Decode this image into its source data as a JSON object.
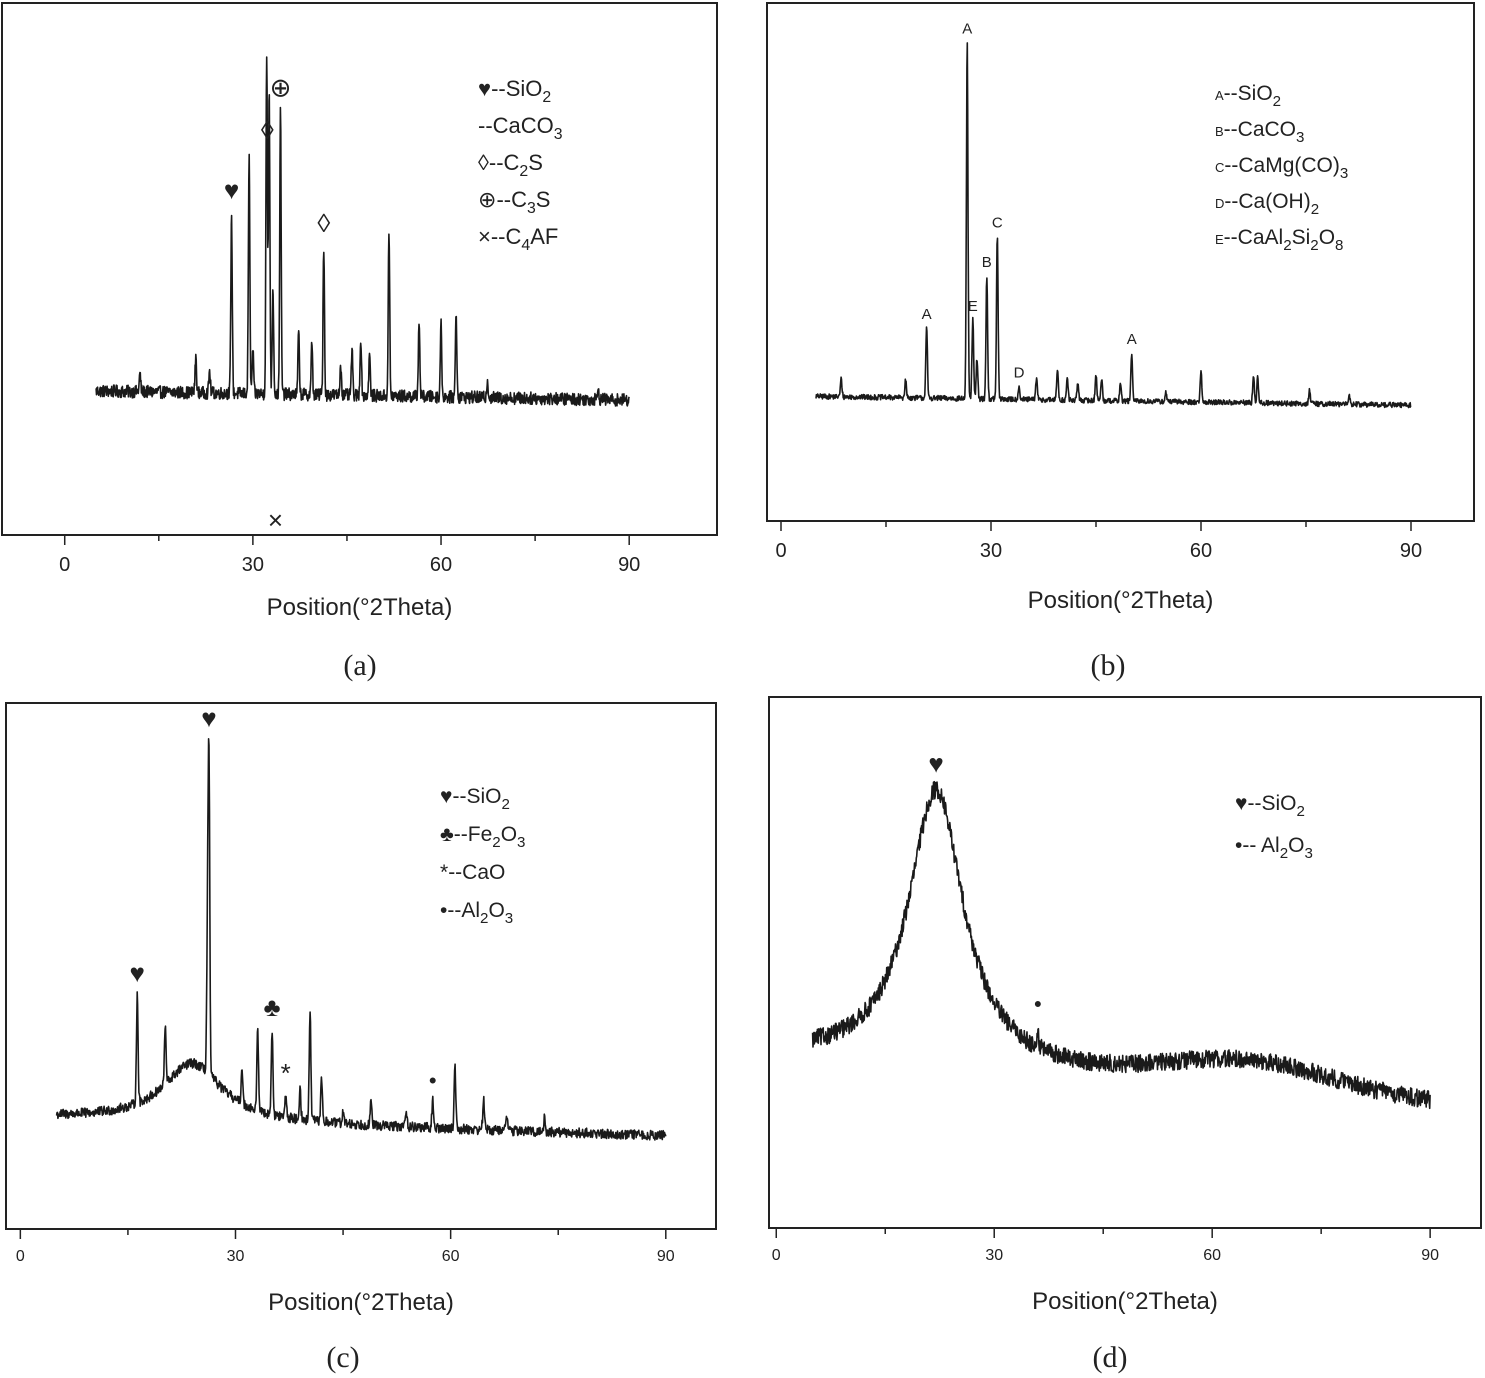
{
  "chart_data": [
    {
      "panel": "a",
      "type": "line",
      "caption": "(a)",
      "xlabel": "Position(°2Theta)",
      "ylabel": "",
      "xlim": [
        -10,
        104
      ],
      "ylim": [
        0,
        100
      ],
      "xticks": [
        0,
        30,
        60,
        90
      ],
      "xtick_labels": [
        "0",
        "30",
        "60",
        "90"
      ],
      "x_range": [
        5,
        90
      ],
      "baseline": 22,
      "baseline_end": 20,
      "noise": 1.4,
      "peaks": [
        {
          "x": 12,
          "h": 4
        },
        {
          "x": 20.9,
          "h": 8
        },
        {
          "x": 23.1,
          "h": 5
        },
        {
          "x": 26.6,
          "h": 40
        },
        {
          "x": 29.4,
          "h": 54
        },
        {
          "x": 30.0,
          "h": 10
        },
        {
          "x": 32.2,
          "h": 76
        },
        {
          "x": 32.6,
          "h": 68
        },
        {
          "x": 33.2,
          "h": 24
        },
        {
          "x": 34.4,
          "h": 63
        },
        {
          "x": 37.3,
          "h": 14
        },
        {
          "x": 39.4,
          "h": 11
        },
        {
          "x": 41.3,
          "h": 33
        },
        {
          "x": 44,
          "h": 7
        },
        {
          "x": 45.8,
          "h": 10
        },
        {
          "x": 47.2,
          "h": 13
        },
        {
          "x": 48.6,
          "h": 9
        },
        {
          "x": 51.7,
          "h": 36
        },
        {
          "x": 56.5,
          "h": 17
        },
        {
          "x": 60.0,
          "h": 16
        },
        {
          "x": 62.4,
          "h": 19
        },
        {
          "x": 67.4,
          "h": 4
        },
        {
          "x": 85,
          "h": 3
        }
      ],
      "peak_markers": [
        {
          "symbol": "♥",
          "x": 26.6,
          "phase": "SiO2"
        },
        {
          "symbol": "◊",
          "x": 32.3,
          "phase": "C2S"
        },
        {
          "symbol": "⊕",
          "x": 34.4,
          "phase": "C3S"
        },
        {
          "symbol": "×",
          "x": 33.6,
          "phase": "C4AF"
        },
        {
          "symbol": "◊",
          "x": 41.3,
          "phase": "C2S"
        }
      ],
      "legend": [
        {
          "symbol": "♥",
          "text": "--SiO",
          "sub": "2",
          "tail": ""
        },
        {
          "symbol": "",
          "text": "--CaCO",
          "sub": "3",
          "tail": ""
        },
        {
          "symbol": "◊",
          "text": "--C",
          "sub": "2",
          "tail": "S"
        },
        {
          "symbol": "⊕",
          "text": "--C",
          "sub": "3",
          "tail": "S"
        },
        {
          "symbol": "×",
          "text": "--C",
          "sub": "4",
          "tail": "AF"
        }
      ]
    },
    {
      "panel": "b",
      "type": "line",
      "caption": "(b)",
      "xlabel": "Position(°2Theta)",
      "ylabel": "",
      "xlim": [
        -2,
        99
      ],
      "ylim": [
        0,
        100
      ],
      "xticks": [
        0,
        30,
        60,
        90
      ],
      "xtick_labels": [
        "0",
        "30",
        "60",
        "90"
      ],
      "x_range": [
        5,
        90
      ],
      "baseline": 19,
      "baseline_end": 17,
      "noise": 0.6,
      "peaks": [
        {
          "x": 8.6,
          "h": 4
        },
        {
          "x": 17.8,
          "h": 4
        },
        {
          "x": 20.8,
          "h": 16
        },
        {
          "x": 26.6,
          "h": 81
        },
        {
          "x": 27.4,
          "h": 18
        },
        {
          "x": 28.0,
          "h": 9
        },
        {
          "x": 29.4,
          "h": 28
        },
        {
          "x": 30.9,
          "h": 37
        },
        {
          "x": 34.0,
          "h": 3
        },
        {
          "x": 36.5,
          "h": 5
        },
        {
          "x": 39.5,
          "h": 7
        },
        {
          "x": 40.9,
          "h": 5
        },
        {
          "x": 42.4,
          "h": 4
        },
        {
          "x": 45.0,
          "h": 6
        },
        {
          "x": 45.8,
          "h": 5
        },
        {
          "x": 48.5,
          "h": 4
        },
        {
          "x": 50.1,
          "h": 11
        },
        {
          "x": 55.0,
          "h": 2
        },
        {
          "x": 60.0,
          "h": 7
        },
        {
          "x": 67.5,
          "h": 6
        },
        {
          "x": 68.1,
          "h": 6
        },
        {
          "x": 75.5,
          "h": 3
        },
        {
          "x": 81.2,
          "h": 2
        }
      ],
      "peak_markers": [
        {
          "symbol": "A",
          "x": 20.8,
          "phase": "SiO2"
        },
        {
          "symbol": "A",
          "x": 26.6,
          "phase": "SiO2"
        },
        {
          "symbol": "E",
          "x": 27.4,
          "phase": "CaAl2Si2O8"
        },
        {
          "symbol": "B",
          "x": 29.4,
          "phase": "CaCO3"
        },
        {
          "symbol": "C",
          "x": 30.9,
          "phase": "CaMg(CO)3"
        },
        {
          "symbol": "D",
          "x": 34.0,
          "phase": "Ca(OH)2"
        },
        {
          "symbol": "A",
          "x": 50.1,
          "phase": "SiO2"
        }
      ],
      "legend": [
        {
          "symbol": "A",
          "text": "--SiO",
          "sub": "2",
          "tail": ""
        },
        {
          "symbol": "B",
          "text": "--CaCO",
          "sub": "3",
          "tail": ""
        },
        {
          "symbol": "C",
          "text": "--CaMg(CO)",
          "sub": "3",
          "tail": ""
        },
        {
          "symbol": "D",
          "text": "--Ca(OH)",
          "sub": "2",
          "tail": ""
        },
        {
          "symbol": "E",
          "text": "--CaAl",
          "sub": "2",
          "tail": "Si",
          "sub2": "2",
          "tail2": "O",
          "sub3": "8"
        }
      ]
    },
    {
      "panel": "c",
      "type": "line",
      "caption": "(c)",
      "xlabel": "Position(°2Theta)",
      "ylabel": "",
      "xlim": [
        -2,
        97
      ],
      "ylim": [
        0,
        100
      ],
      "xticks": [
        0,
        30,
        60,
        90
      ],
      "xtick_labels": [
        "0",
        "30",
        "60",
        "90"
      ],
      "x_range": [
        5,
        90
      ],
      "baseline": 16,
      "baseline_end": 12,
      "noise": 1.1,
      "hump": {
        "center": 24,
        "height": 13,
        "width": 5
      },
      "peaks": [
        {
          "x": 16.3,
          "h": 24
        },
        {
          "x": 20.2,
          "h": 13
        },
        {
          "x": 26.3,
          "h": 68
        },
        {
          "x": 26.1,
          "h": 30
        },
        {
          "x": 30.9,
          "h": 8
        },
        {
          "x": 33.1,
          "h": 18
        },
        {
          "x": 35.1,
          "h": 19
        },
        {
          "x": 37.0,
          "h": 5
        },
        {
          "x": 39.0,
          "h": 7
        },
        {
          "x": 40.4,
          "h": 24
        },
        {
          "x": 42.0,
          "h": 10
        },
        {
          "x": 45.0,
          "h": 3
        },
        {
          "x": 48.9,
          "h": 5
        },
        {
          "x": 53.8,
          "h": 4
        },
        {
          "x": 57.5,
          "h": 6
        },
        {
          "x": 60.6,
          "h": 14
        },
        {
          "x": 64.6,
          "h": 7
        },
        {
          "x": 67.8,
          "h": 4
        },
        {
          "x": 73.1,
          "h": 3
        }
      ],
      "peak_markers": [
        {
          "symbol": "♥",
          "x": 16.3,
          "phase": "SiO2"
        },
        {
          "symbol": "♥",
          "x": 26.3,
          "phase": "SiO2"
        },
        {
          "symbol": "♣",
          "x": 35.1,
          "phase": "Fe2O3"
        },
        {
          "symbol": "*",
          "x": 37.0,
          "phase": "CaO"
        },
        {
          "symbol": "•",
          "x": 57.5,
          "phase": "Al2O3"
        }
      ],
      "legend": [
        {
          "symbol": "♥",
          "text": "--SiO",
          "sub": "2",
          "tail": ""
        },
        {
          "symbol": "♣",
          "text": "--Fe",
          "sub": "2",
          "tail": "O",
          "sub2": "3",
          "tail2": ""
        },
        {
          "symbol": "*",
          "text": "--CaO",
          "sub": "",
          "tail": ""
        },
        {
          "symbol": "•",
          "text": "--Al",
          "sub": "2",
          "tail": "O",
          "sub2": "3",
          "tail2": ""
        }
      ]
    },
    {
      "panel": "d",
      "type": "line",
      "caption": "(d)",
      "xlabel": "Position(°2Theta)",
      "ylabel": "",
      "xlim": [
        -1,
        97
      ],
      "ylim": [
        0,
        100
      ],
      "xticks": [
        0,
        30,
        60,
        90
      ],
      "xtick_labels": [
        "0",
        "30",
        "60",
        "90"
      ],
      "x_range": [
        5,
        90
      ],
      "baseline": 29,
      "baseline_end": 19,
      "noise": 2.0,
      "hump": {
        "center": 22,
        "height": 61,
        "width": 4.6
      },
      "broad": {
        "center": 65,
        "height": 6,
        "width": 16
      },
      "peaks": [
        {
          "x": 36.0,
          "h": 4
        }
      ],
      "peak_markers": [
        {
          "symbol": "♥",
          "x": 22.0,
          "phase": "SiO2"
        },
        {
          "symbol": "•",
          "x": 36.0,
          "phase": "Al2O3"
        }
      ],
      "legend": [
        {
          "symbol": "♥",
          "text": "--SiO",
          "sub": "2",
          "tail": ""
        },
        {
          "symbol": "•",
          "text": "-- Al",
          "sub": "2",
          "tail": "O",
          "sub2": "3",
          "tail2": ""
        }
      ]
    }
  ]
}
